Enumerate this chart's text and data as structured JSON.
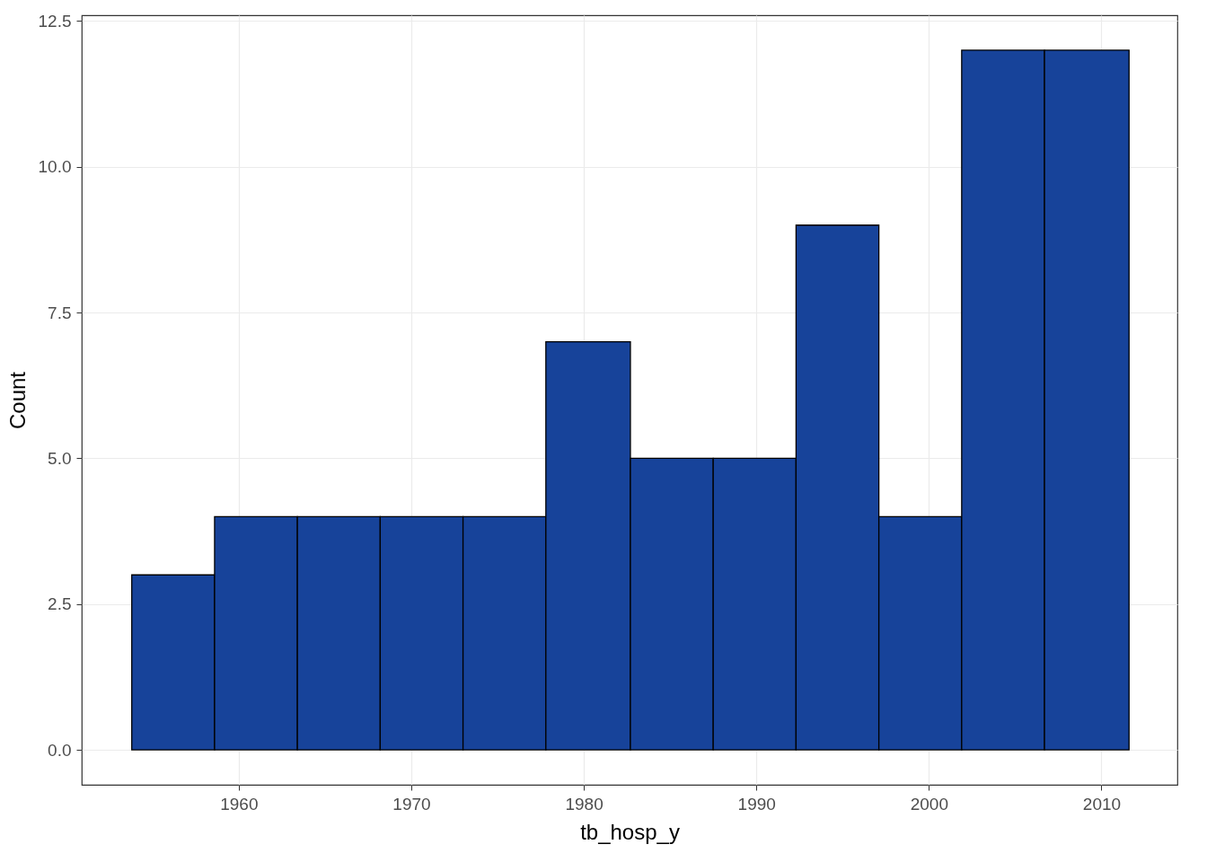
{
  "chart_data": {
    "type": "histogram",
    "xlabel": "tb_hosp_y",
    "ylabel": "Count",
    "bins": [
      1953.8,
      1958.6,
      1963.4,
      1968.2,
      1973.0,
      1977.8,
      1982.7,
      1987.5,
      1992.3,
      1997.1,
      2001.9,
      2006.7,
      2011.6
    ],
    "values": [
      3,
      4,
      4,
      4,
      4,
      7,
      5,
      5,
      9,
      4,
      12,
      12
    ],
    "color": "#17439a",
    "xlim": [
      1950.9,
      2014.4
    ],
    "xticks": [
      1960,
      1970,
      1980,
      1990,
      2000,
      2010
    ],
    "ylim": [
      -0.6,
      12.6
    ],
    "yticks": [
      {
        "value": 0,
        "label": "0.0"
      },
      {
        "value": 2.5,
        "label": "2.5"
      },
      {
        "value": 5,
        "label": "5.0"
      },
      {
        "value": 7.5,
        "label": "7.5"
      },
      {
        "value": 10,
        "label": "10.0"
      },
      {
        "value": 12.5,
        "label": "12.5"
      }
    ],
    "grid": true
  }
}
